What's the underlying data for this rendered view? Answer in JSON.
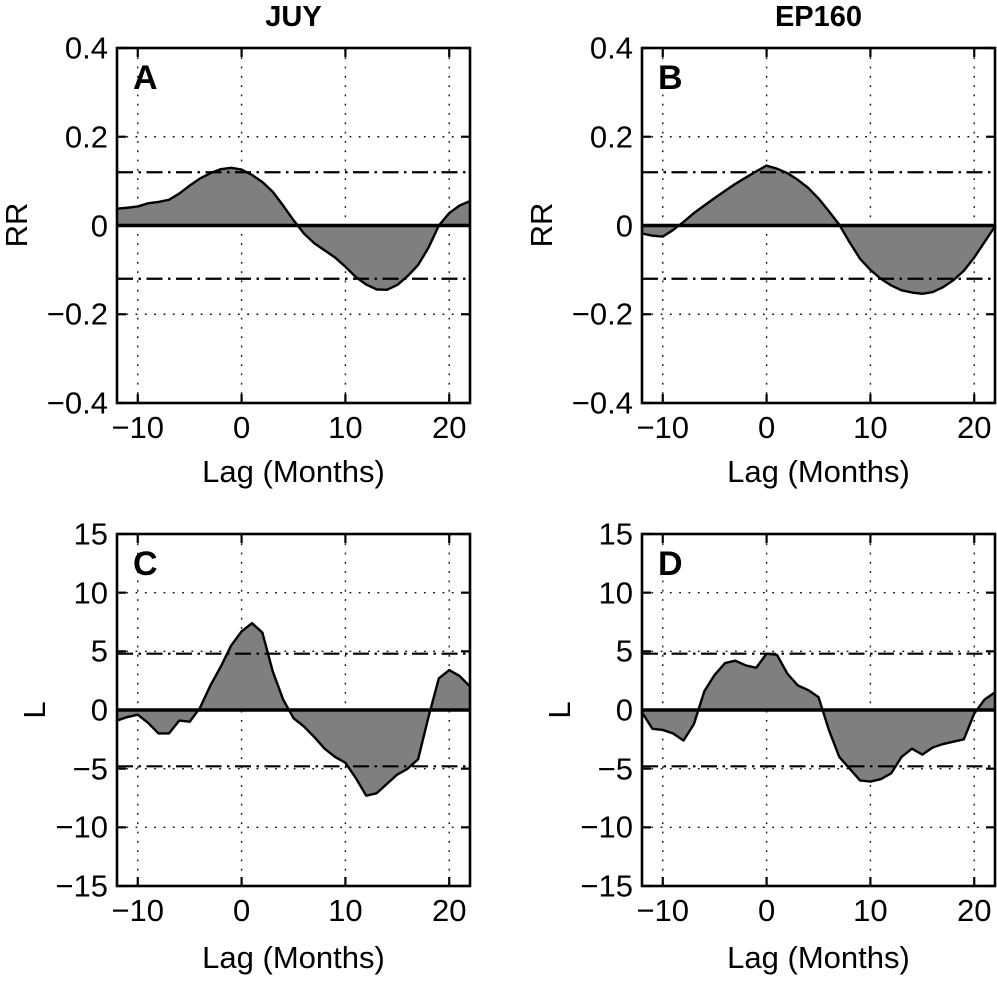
{
  "page": {
    "background": "#ffffff",
    "fill_color": "#7f7f7f",
    "line_color": "#000000"
  },
  "chart_data": [
    {
      "type": "area",
      "panel_label": "A",
      "title": "JUY",
      "xlabel": "Lag (Months)",
      "ylabel": "RR",
      "xlim": [
        -12,
        22
      ],
      "ylim": [
        -0.4,
        0.4
      ],
      "xtick_values": [
        -10,
        0,
        10,
        20
      ],
      "xtick_labels": [
        "−10",
        "0",
        "10",
        "20"
      ],
      "ytick_values": [
        0.4,
        0.2,
        0,
        -0.2,
        -0.4
      ],
      "ytick_labels": [
        "0.4",
        "0.2",
        "0",
        "−0.2",
        "−0.4"
      ],
      "grid": true,
      "legend": "none",
      "zero_line": true,
      "significance_level": 0.12,
      "significance_style": "dash-dot",
      "x": [
        -12,
        -11,
        -10,
        -9,
        -8,
        -7,
        -6,
        -5,
        -4,
        -3,
        -2,
        -1,
        0,
        1,
        2,
        3,
        4,
        5,
        6,
        7,
        8,
        9,
        10,
        11,
        12,
        13,
        14,
        15,
        16,
        17,
        18,
        19,
        20,
        21,
        22
      ],
      "y": [
        0.038,
        0.04,
        0.043,
        0.05,
        0.053,
        0.058,
        0.072,
        0.09,
        0.106,
        0.118,
        0.127,
        0.13,
        0.126,
        0.114,
        0.098,
        0.076,
        0.045,
        0.012,
        -0.018,
        -0.04,
        -0.056,
        -0.072,
        -0.093,
        -0.116,
        -0.133,
        -0.144,
        -0.145,
        -0.134,
        -0.114,
        -0.089,
        -0.05,
        0,
        0.028,
        0.045,
        0.055
      ]
    },
    {
      "type": "area",
      "panel_label": "B",
      "title": "EP160",
      "xlabel": "Lag (Months)",
      "ylabel": "RR",
      "xlim": [
        -12,
        22
      ],
      "ylim": [
        -0.4,
        0.4
      ],
      "xtick_values": [
        -10,
        0,
        10,
        20
      ],
      "xtick_labels": [
        "−10",
        "0",
        "10",
        "20"
      ],
      "ytick_values": [
        0.4,
        0.2,
        0,
        -0.2,
        -0.4
      ],
      "ytick_labels": [
        "0.4",
        "0.2",
        "0",
        "−0.2",
        "−0.4"
      ],
      "grid": true,
      "legend": "none",
      "zero_line": true,
      "significance_level": 0.12,
      "significance_style": "dash-dot",
      "x": [
        -12,
        -11,
        -10,
        -9,
        -8,
        -7,
        -6,
        -5,
        -4,
        -3,
        -2,
        -1,
        0,
        1,
        2,
        3,
        4,
        5,
        6,
        7,
        8,
        9,
        10,
        11,
        12,
        13,
        14,
        15,
        16,
        17,
        18,
        19,
        20,
        21,
        22
      ],
      "y": [
        -0.018,
        -0.023,
        -0.025,
        -0.01,
        0.008,
        0.028,
        0.045,
        0.062,
        0.078,
        0.094,
        0.108,
        0.122,
        0.135,
        0.128,
        0.118,
        0.103,
        0.085,
        0.061,
        0.032,
        0.002,
        -0.038,
        -0.075,
        -0.1,
        -0.12,
        -0.135,
        -0.146,
        -0.151,
        -0.154,
        -0.15,
        -0.139,
        -0.123,
        -0.102,
        -0.072,
        -0.037,
        -0.002
      ]
    },
    {
      "type": "area",
      "panel_label": "C",
      "title": "",
      "xlabel": "Lag (Months)",
      "ylabel": "L",
      "xlim": [
        -12,
        22
      ],
      "ylim": [
        -15,
        15
      ],
      "xtick_values": [
        -10,
        0,
        10,
        20
      ],
      "xtick_labels": [
        "−10",
        "0",
        "10",
        "20"
      ],
      "ytick_values": [
        15,
        10,
        5,
        0,
        -5,
        -10,
        -15
      ],
      "ytick_labels": [
        "15",
        "10",
        "5",
        "0",
        "−5",
        "−10",
        "−15"
      ],
      "grid": true,
      "legend": "none",
      "zero_line": true,
      "significance_level": 4.8,
      "significance_style": "dash-dot",
      "x": [
        -12,
        -11,
        -10,
        -9,
        -8,
        -7,
        -6,
        -5,
        -4,
        -3,
        -2,
        -1,
        0,
        1,
        2,
        3,
        4,
        5,
        6,
        7,
        8,
        9,
        10,
        11,
        12,
        13,
        14,
        15,
        16,
        17,
        18,
        19,
        20,
        21,
        22
      ],
      "y": [
        -0.9,
        -0.6,
        -0.4,
        -1.1,
        -2,
        -2,
        -0.9,
        -1,
        0.2,
        2.1,
        3.7,
        5.5,
        6.7,
        7.4,
        6.6,
        3.3,
        0.9,
        -0.7,
        -1.4,
        -2.3,
        -3.3,
        -4,
        -4.5,
        -5.8,
        -7.3,
        -7.1,
        -6.3,
        -5.5,
        -5,
        -4.2,
        -0.6,
        2.7,
        3.4,
        2.9,
        2
      ]
    },
    {
      "type": "area",
      "panel_label": "D",
      "title": "",
      "xlabel": "Lag (Months)",
      "ylabel": "L",
      "xlim": [
        -12,
        22
      ],
      "ylim": [
        -15,
        15
      ],
      "xtick_values": [
        -10,
        0,
        10,
        20
      ],
      "xtick_labels": [
        "−10",
        "0",
        "10",
        "20"
      ],
      "ytick_values": [
        15,
        10,
        5,
        0,
        -5,
        -10,
        -15
      ],
      "ytick_labels": [
        "15",
        "10",
        "5",
        "0",
        "−5",
        "−10",
        "−15"
      ],
      "grid": true,
      "legend": "none",
      "zero_line": true,
      "significance_level": 4.8,
      "significance_style": "dash-dot",
      "x": [
        -12,
        -11,
        -10,
        -9,
        -8,
        -7,
        -6,
        -5,
        -4,
        -3,
        -2,
        -1,
        0,
        1,
        2,
        3,
        4,
        5,
        6,
        7,
        8,
        9,
        10,
        11,
        12,
        13,
        14,
        15,
        16,
        17,
        18,
        19,
        20,
        21,
        22
      ],
      "y": [
        -0.2,
        -1.6,
        -1.7,
        -2,
        -2.6,
        -1.2,
        1.6,
        3,
        4,
        4.2,
        3.8,
        3.6,
        4.8,
        4.7,
        3.1,
        2.1,
        1.7,
        1.1,
        -1.7,
        -4,
        -5,
        -6,
        -6.1,
        -5.9,
        -5.4,
        -4,
        -3.3,
        -3.8,
        -3.2,
        -2.9,
        -2.7,
        -2.5,
        -0.3,
        0.9,
        1.5
      ]
    }
  ]
}
